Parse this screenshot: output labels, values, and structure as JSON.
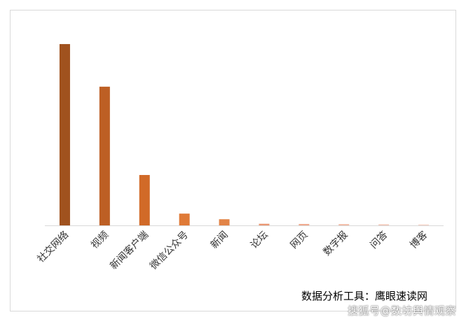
{
  "chart_data": {
    "type": "bar",
    "title": "",
    "xlabel": "",
    "ylabel": "",
    "categories": [
      "社交网络",
      "视频",
      "新闻客户端",
      "微信公众号",
      "新闻",
      "论坛",
      "网页",
      "数字报",
      "问答",
      "博客"
    ],
    "values": [
      100,
      76.5,
      27.8,
      6.5,
      3.4,
      0.9,
      0.8,
      0.7,
      0.6,
      0.5
    ],
    "ylim": [
      0,
      105
    ],
    "grid": false,
    "legend": "none",
    "colors": [
      "#a0521e",
      "#bd5f24",
      "#d16a28",
      "#df7a37",
      "#e28447",
      "#e99772",
      "#efaa8e",
      "#f1b8a2",
      "#f3c6b6",
      "#f5d2c6"
    ]
  },
  "source_note": "数据分析工具：鹰眼速读网",
  "watermark": "搜狐号@数坊舆情观察"
}
